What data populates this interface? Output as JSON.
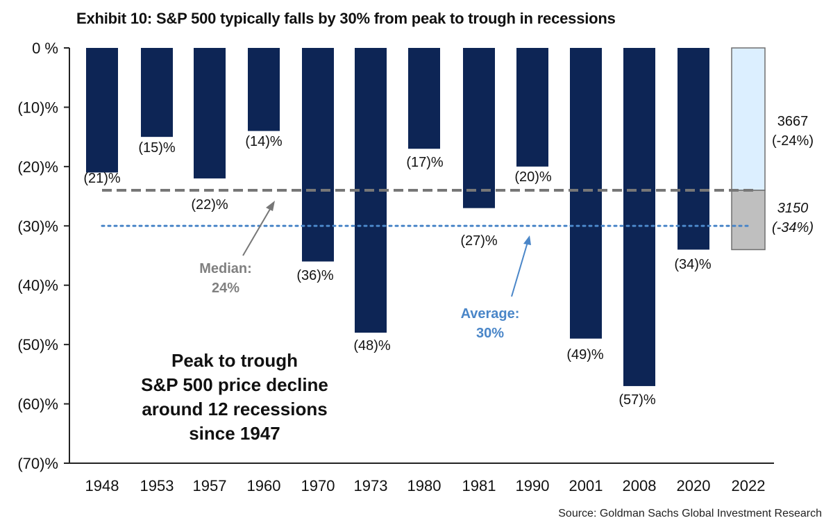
{
  "chart_data": {
    "type": "bar",
    "title": "Exhibit 10: S&P 500 typically falls by 30% from peak to trough in recessions",
    "source": "Source: Goldman Sachs Global Investment Research",
    "categories": [
      "1948",
      "1953",
      "1957",
      "1960",
      "1970",
      "1973",
      "1980",
      "1981",
      "1990",
      "2001",
      "2008",
      "2020",
      "2022"
    ],
    "values": [
      -21,
      -15,
      -22,
      -14,
      -36,
      -48,
      -17,
      -27,
      -20,
      -49,
      -57,
      -34,
      null
    ],
    "data_labels": [
      "(21)%",
      "(15)%",
      "(22)%",
      "(14)%",
      "(36)%",
      "(48)%",
      "(17)%",
      "(27)%",
      "(20)%",
      "(49)%",
      "(57)%",
      "(34)%",
      ""
    ],
    "ylim": [
      -70,
      0
    ],
    "yticks": [
      0,
      -10,
      -20,
      -30,
      -40,
      -50,
      -60,
      -70
    ],
    "ytick_labels": [
      "0 %",
      "(10)%",
      "(20)%",
      "(30)%",
      "(40)%",
      "(50)%",
      "(60)%",
      "(70)%"
    ],
    "grid": false,
    "bar_color": "#0d2555",
    "scenarios_2022": {
      "category": "2022",
      "segments": [
        {
          "from": 0,
          "to": -24,
          "color": "#dcefff",
          "label_line1": "3667",
          "label_line2": "(-24%)",
          "italic": false
        },
        {
          "from": -24,
          "to": -34,
          "color": "#bfbfbf",
          "label_line1": "3150",
          "label_line2": "(-34%)",
          "italic": true
        }
      ]
    },
    "reference_lines": [
      {
        "name": "median",
        "value": -24,
        "style": "dashed",
        "color": "#777777",
        "label_line1": "Median:",
        "label_line2": "24%"
      },
      {
        "name": "average",
        "value": -30,
        "style": "dotted",
        "color": "#4a86c8",
        "label_line1": "Average:",
        "label_line2": "30%"
      }
    ],
    "annotation": [
      "Peak to trough",
      "S&P 500 price decline",
      "around 12 recessions",
      "since 1947"
    ]
  }
}
